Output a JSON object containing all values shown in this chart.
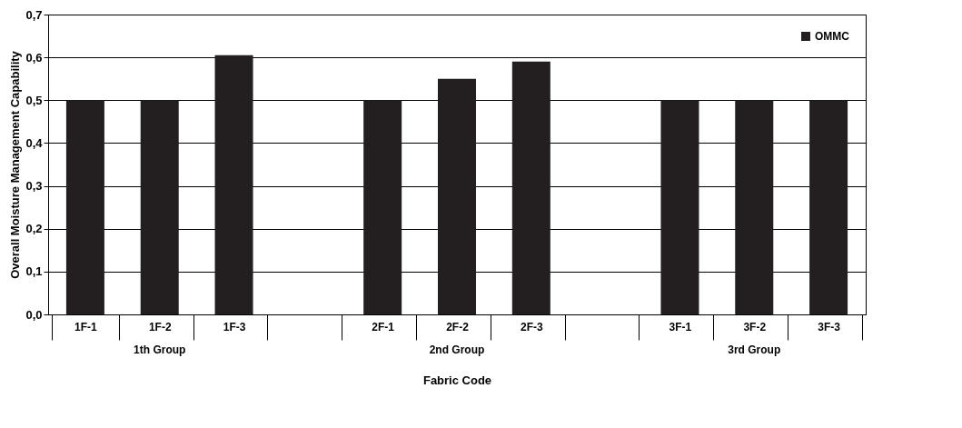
{
  "chart_data": {
    "type": "bar",
    "xlabel": "Fabric Code",
    "ylabel": "Overall Moisture Management Capability",
    "categories": [
      "1F-1",
      "1F-2",
      "1F-3",
      null,
      "2F-1",
      "2F-2",
      "2F-3",
      null,
      "3F-1",
      "3F-2",
      "3F-3"
    ],
    "series": [
      {
        "name": "OMMC",
        "color": "#231f20",
        "values": [
          0.5,
          0.5,
          0.605,
          null,
          0.5,
          0.55,
          0.59,
          null,
          0.5,
          0.5,
          0.5
        ]
      }
    ],
    "ylim": [
      0,
      0.7
    ],
    "yticks": [
      {
        "value": 0,
        "label": "0,0"
      },
      {
        "value": 0.1,
        "label": "0,1"
      },
      {
        "value": 0.2,
        "label": "0,2"
      },
      {
        "value": 0.3,
        "label": "0,3"
      },
      {
        "value": 0.4,
        "label": "0,4"
      },
      {
        "value": 0.5,
        "label": "0,5"
      },
      {
        "value": 0.6,
        "label": "0,6"
      },
      {
        "value": 0.7,
        "label": "0,7"
      }
    ],
    "grid": "y",
    "legend": "top right",
    "annotations": [
      "1th Group",
      "2nd Group",
      "3rd Group"
    ]
  }
}
